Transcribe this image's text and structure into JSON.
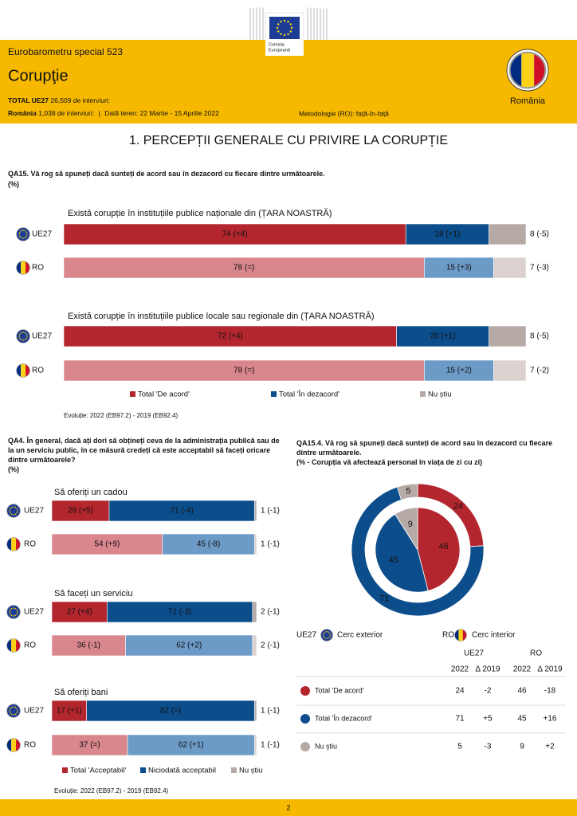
{
  "header": {
    "logo": [
      "Comisia",
      "Europeană"
    ],
    "survey": "Eurobarometru special 523",
    "title": "Corupţie",
    "total_label": "TOTAL UE27",
    "total_text": "26,509 de interviuri:",
    "ro_label": "România",
    "ro_text": "1,038 de interviuri:",
    "separator": "|",
    "fieldwork": "Dată teren: 22 Martie - 15 Aprilie 2022",
    "method": "Metodologie (RO): față-în-față",
    "country": "România"
  },
  "section_title": "1. PERCEPȚII GENERALE CU PRIVIRE LA CORUPȚIE",
  "chart_data": [
    {
      "type": "hbar",
      "title": "QA15. Vă rog să spuneți dacă sunteți de acord sau în dezacord cu fiecare dintre următoarele.",
      "subtitle": "(%)",
      "xlim": [
        0,
        100
      ],
      "categories": [
        "UE27",
        "RO"
      ],
      "series": [
        {
          "name": "Total 'De acord'",
          "colors": [
            "#b3262e",
            "#d9868d"
          ]
        },
        {
          "name": "Total 'În dezacord'",
          "colors": [
            "#0c4d8b",
            "#6d9bc8"
          ]
        },
        {
          "name": "Nu știu",
          "colors": [
            "#b6aaa7",
            "#dbd2cf"
          ]
        }
      ],
      "panels": [
        {
          "title": "Există corupție în instituțiile publice naționale din (ȚARA NOASTRĂ)",
          "series": [
            {
              "values": [
                74,
                78
              ],
              "value_labels": [
                "74 (+4)",
                "78 (=)"
              ]
            },
            {
              "values": [
                18,
                15
              ],
              "value_labels": [
                "18 (+1)",
                "15 (+3)"
              ]
            },
            {
              "values": [
                8,
                7
              ],
              "value_labels": [
                "8 (-5)",
                "7 (-3)"
              ]
            }
          ]
        },
        {
          "title": "Există corupție în instituțiile publice locale sau regionale din (ȚARA NOASTRĂ)",
          "series": [
            {
              "values": [
                72,
                78
              ],
              "value_labels": [
                "72 (+4)",
                "78 (=)"
              ]
            },
            {
              "values": [
                20,
                15
              ],
              "value_labels": [
                "20 (+1)",
                "15 (+2)"
              ]
            },
            {
              "values": [
                8,
                7
              ],
              "value_labels": [
                "8 (-5)",
                "7 (-2)"
              ]
            }
          ]
        }
      ],
      "note": "Evoluție: 2022 (EB97.2) - 2019 (EB92.4)"
    },
    {
      "type": "hbar",
      "title": "QA4. În general, dacă ați dori să obțineți ceva de la administrația publică sau de la un serviciu public, în ce măsură credeți că este acceptabil să faceți oricare dintre următoarele?",
      "subtitle": "(%)",
      "xlim": [
        0,
        100
      ],
      "categories": [
        "UE27",
        "RO"
      ],
      "series": [
        {
          "name": "Total 'Acceptabil'",
          "colors": [
            "#b3262e",
            "#d9868d"
          ]
        },
        {
          "name": "Niciodată acceptabil",
          "colors": [
            "#0c4d8b",
            "#6d9bc8"
          ]
        },
        {
          "name": "Nu știu",
          "colors": [
            "#b6aaa7",
            "#dbd2cf"
          ]
        }
      ],
      "panels": [
        {
          "title": "Să oferiți un cadou",
          "series": [
            {
              "values": [
                28,
                54
              ],
              "value_labels": [
                "28 (+5)",
                "54 (+9)"
              ]
            },
            {
              "values": [
                71,
                45
              ],
              "value_labels": [
                "71 (-4)",
                "45 (-8)"
              ]
            },
            {
              "values": [
                1,
                1
              ],
              "value_labels": [
                "1 (-1)",
                "1 (-1)"
              ]
            }
          ]
        },
        {
          "title": "Să faceți un serviciu",
          "series": [
            {
              "values": [
                27,
                36
              ],
              "value_labels": [
                "27 (+4)",
                "36 (-1)"
              ]
            },
            {
              "values": [
                71,
                62
              ],
              "value_labels": [
                "71 (-3)",
                "62 (+2)"
              ]
            },
            {
              "values": [
                2,
                2
              ],
              "value_labels": [
                "2 (-1)",
                "2 (-1)"
              ]
            }
          ]
        },
        {
          "title": "Să oferiți bani",
          "series": [
            {
              "values": [
                17,
                37
              ],
              "value_labels": [
                "17 (+1)",
                "37 (=)"
              ]
            },
            {
              "values": [
                82,
                62
              ],
              "value_labels": [
                "82 (=)",
                "62 (+1)"
              ]
            },
            {
              "values": [
                1,
                1
              ],
              "value_labels": [
                "1 (-1)",
                "1 (-1)"
              ]
            }
          ]
        }
      ],
      "note": "Evoluție: 2022 (EB97.2) - 2019 (EB92.4)"
    },
    {
      "type": "donut",
      "title": "QA15.4. Vă rog să spuneți dacă sunteți de acord sau în dezacord cu fiecare dintre următoarele.",
      "subtitle": "(% - Corupția vă afectează personal în viața de zi cu zi)",
      "categories": [
        "Total 'De acord'",
        "Total 'În dezacord'",
        "Nu știu"
      ],
      "colors": [
        "#b3262e",
        "#0c4d8b",
        "#b6aaa7"
      ],
      "columns": [
        "2022",
        "Δ 2019"
      ],
      "series": [
        {
          "name": "UE27",
          "ring": "Cerc exterior",
          "values": [
            24,
            71,
            5
          ],
          "changes": [
            "-2",
            "+5",
            "-3"
          ]
        },
        {
          "name": "RO",
          "ring": "Cerc interior",
          "values": [
            46,
            45,
            9
          ],
          "changes": [
            "-18",
            "+16",
            "+2"
          ]
        }
      ]
    }
  ],
  "page_number": "2"
}
